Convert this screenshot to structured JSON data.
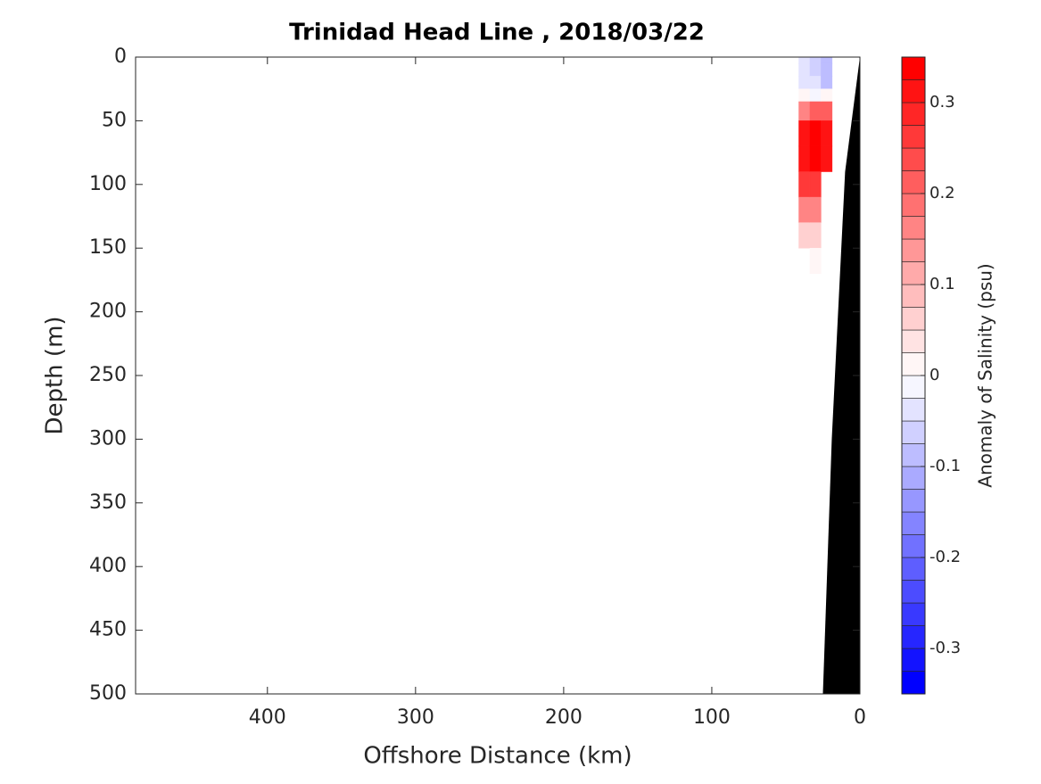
{
  "chart_data": {
    "type": "contourf",
    "title": "Trinidad Head Line , 2018/03/22",
    "x_label": "Offshore Distance (km)",
    "y_label": "Depth (m)",
    "colorbar_label": "Anomaly of Salinity (psu)",
    "xlim": [
      489,
      0
    ],
    "xticks": [
      400,
      300,
      200,
      100,
      0
    ],
    "ylim": [
      0,
      500
    ],
    "yticks": [
      0,
      50,
      100,
      150,
      200,
      250,
      300,
      350,
      400,
      450,
      500
    ],
    "clim": [
      -0.35,
      0.35
    ],
    "cticks": [
      -0.3,
      -0.2,
      -0.1,
      0,
      0.1,
      0.2,
      0.3
    ],
    "levels": 28,
    "x": [
      37.5,
      30,
      22.5
    ],
    "depth": [
      0,
      10,
      20,
      30,
      40,
      60,
      80,
      100,
      120,
      140,
      160
    ],
    "anomaly": [
      [
        -0.05,
        -0.05,
        -0.04,
        0.0,
        0.15,
        0.3,
        0.3,
        0.25,
        0.15,
        0.05,
        null
      ],
      [
        -0.06,
        -0.06,
        -0.05,
        -0.01,
        0.2,
        0.35,
        0.33,
        0.25,
        0.15,
        0.05,
        0.02
      ],
      [
        -0.08,
        -0.1,
        -0.08,
        0.0,
        0.2,
        0.3,
        0.3,
        null,
        null,
        null,
        null
      ]
    ],
    "bathymetry": {
      "x": [
        0,
        10,
        19,
        25
      ],
      "depth": [
        0,
        90,
        300,
        500
      ],
      "color": "#000000"
    }
  }
}
